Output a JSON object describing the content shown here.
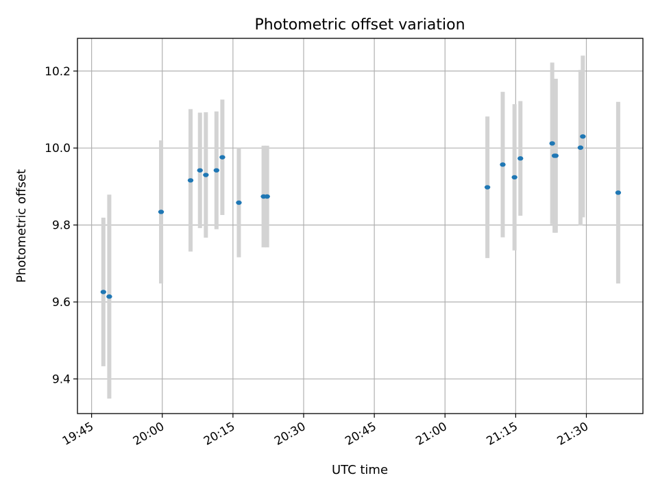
{
  "chart_data": {
    "type": "scatter",
    "title": "Photometric offset variation",
    "xlabel": "UTC time",
    "ylabel": "Photometric offset",
    "x_unit": "minutes",
    "xlim": [
      "19:42",
      "21:42"
    ],
    "ylim": [
      9.31,
      10.285
    ],
    "grid": true,
    "x_ticks": [
      "19:45",
      "20:00",
      "20:15",
      "20:30",
      "20:45",
      "21:00",
      "21:15",
      "21:30"
    ],
    "y_ticks": [
      9.4,
      9.6,
      9.8,
      10.0,
      10.2
    ],
    "y_tick_labels": [
      "9.4",
      "9.6",
      "9.8",
      "10.0",
      "10.2"
    ],
    "colors": {
      "marker": "#1f77b4",
      "errorbar": "#d3d3d3",
      "grid": "#b0b0b0"
    },
    "series": [
      {
        "points": [
          {
            "x": "19:47:30",
            "y": 9.626,
            "yerr": 0.193
          },
          {
            "x": "19:48:45",
            "y": 9.614,
            "yerr": 0.265
          },
          {
            "x": "19:59:45",
            "y": 9.834,
            "yerr": 0.186
          },
          {
            "x": "20:06:00",
            "y": 9.916,
            "yerr": 0.185
          },
          {
            "x": "20:08:00",
            "y": 9.942,
            "yerr": 0.15
          },
          {
            "x": "20:09:15",
            "y": 9.93,
            "yerr": 0.163
          },
          {
            "x": "20:11:30",
            "y": 9.942,
            "yerr": 0.153
          },
          {
            "x": "20:12:45",
            "y": 9.976,
            "yerr": 0.15
          },
          {
            "x": "20:16:15",
            "y": 9.858,
            "yerr": 0.142
          },
          {
            "x": "20:21:30",
            "y": 9.874,
            "yerr": 0.132
          },
          {
            "x": "20:22:15",
            "y": 9.874,
            "yerr": 0.132
          },
          {
            "x": "21:09:00",
            "y": 9.898,
            "yerr": 0.184
          },
          {
            "x": "21:12:15",
            "y": 9.957,
            "yerr": 0.189
          },
          {
            "x": "21:14:45",
            "y": 9.924,
            "yerr": 0.19
          },
          {
            "x": "21:16:00",
            "y": 9.973,
            "yerr": 0.149
          },
          {
            "x": "21:22:45",
            "y": 10.012,
            "yerr": 0.21
          },
          {
            "x": "21:23:15",
            "y": 9.98,
            "yerr": 0.2
          },
          {
            "x": "21:23:30",
            "y": 9.98,
            "yerr": 0.2
          },
          {
            "x": "21:28:45",
            "y": 10.001,
            "yerr": 0.202
          },
          {
            "x": "21:29:15",
            "y": 10.03,
            "yerr": 0.21
          },
          {
            "x": "21:36:45",
            "y": 9.884,
            "yerr": 0.236
          }
        ]
      }
    ]
  }
}
